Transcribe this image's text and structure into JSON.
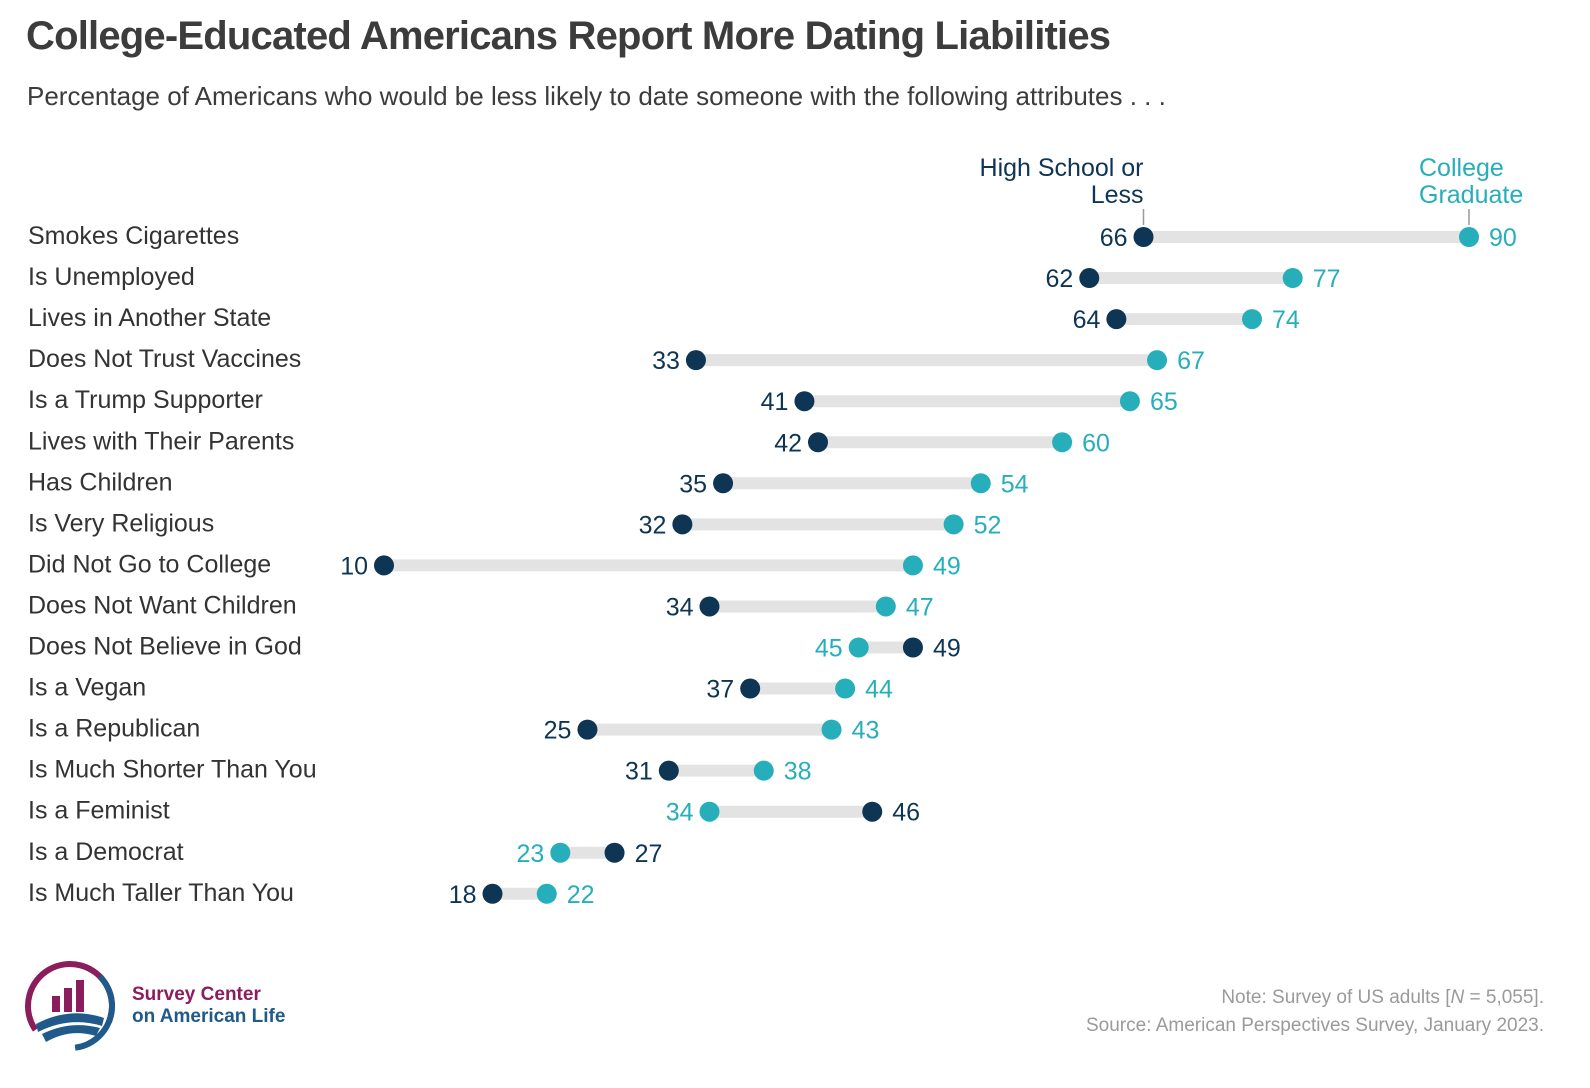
{
  "title": "College-Educated Americans Report More Dating Liabilities",
  "subtitle": "Percentage of Americans who would be less likely to date someone with the following attributes . . .",
  "note": {
    "prefix": "Note: Survey of US adults [",
    "n_symbol": "N",
    "suffix": " = 5,055].",
    "source": "Source: American Perspectives Survey, January 2023."
  },
  "logo": {
    "line1": "Survey Center",
    "line2": "on American Life"
  },
  "colors": {
    "high_school": "#0e3553",
    "college": "#26afba",
    "bar": "#e3e3e3",
    "label": "#333333"
  },
  "chart_data": {
    "type": "dumbbell",
    "series": [
      {
        "name": "High School or Less",
        "name_lines": [
          "High School or",
          "Less"
        ]
      },
      {
        "name": "College Graduate",
        "name_lines": [
          "College",
          "Graduate"
        ]
      }
    ],
    "categories": [
      "Smokes Cigarettes",
      "Is Unemployed",
      "Lives in Another State",
      "Does Not Trust Vaccines",
      "Is a Trump Supporter",
      "Lives with Their Parents",
      "Has Children",
      "Is Very Religious",
      "Did Not Go to College",
      "Does Not Want Children",
      "Does Not Believe in God",
      "Is a Vegan",
      "Is a Republican",
      "Is Much Shorter Than You",
      "Is a Feminist",
      "Is a Democrat",
      "Is Much Taller Than You"
    ],
    "high_school": [
      66,
      62,
      64,
      33,
      41,
      42,
      35,
      32,
      10,
      34,
      49,
      37,
      25,
      31,
      46,
      27,
      18
    ],
    "college": [
      90,
      77,
      74,
      67,
      65,
      60,
      54,
      52,
      49,
      47,
      45,
      44,
      43,
      38,
      34,
      23,
      22
    ],
    "xlim": [
      10,
      90
    ],
    "grid": false
  }
}
